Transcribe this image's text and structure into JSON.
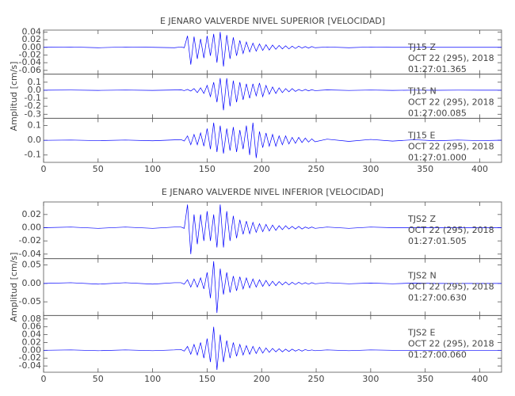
{
  "chart_data": [
    {
      "type": "line",
      "title": "E JENARO VALVERDE NIVEL SUPERIOR [VELOCIDAD]",
      "ylabel": "Amplitud [cm/s]",
      "xlim": [
        0,
        420
      ],
      "xticks": [
        0,
        50,
        100,
        150,
        200,
        250,
        300,
        350,
        400
      ],
      "x": [
        0,
        25,
        50,
        75,
        100,
        120,
        126,
        129,
        132,
        135,
        138,
        141,
        144,
        147,
        150,
        153,
        156,
        159,
        162,
        165,
        168,
        171,
        174,
        177,
        180,
        183,
        186,
        189,
        192,
        195,
        198,
        201,
        204,
        207,
        210,
        213,
        216,
        219,
        222,
        225,
        228,
        231,
        234,
        237,
        240,
        243,
        246,
        249,
        260,
        280,
        300,
        320,
        340,
        360,
        380,
        400,
        420
      ],
      "subplots": [
        {
          "label": "TJ15   Z",
          "date": "OCT 22 (295), 2018",
          "time": "01:27:01.365",
          "color": "#0000ff",
          "ylim": [
            -0.07,
            0.045
          ],
          "yticks": [
            0.04,
            0.02,
            {
              "value": 0,
              "label": "0.00"
            },
            -0.02,
            -0.04,
            -0.06
          ],
          "values": [
            0,
            0.001,
            -0.001,
            0.001,
            0,
            -0.001,
            0.001,
            -0.001,
            0.03,
            -0.045,
            0.028,
            -0.03,
            0.022,
            -0.028,
            0.03,
            -0.022,
            0.035,
            -0.04,
            0.04,
            -0.05,
            0.032,
            -0.03,
            0.026,
            -0.022,
            0.018,
            -0.016,
            0.014,
            -0.012,
            0.011,
            -0.01,
            0.009,
            -0.008,
            0.007,
            -0.007,
            0.006,
            -0.005,
            0.005,
            -0.004,
            0.004,
            -0.004,
            0.003,
            -0.003,
            0.003,
            -0.002,
            0.002,
            -0.002,
            0.002,
            -0.001,
            0.001,
            -0.001,
            0.001,
            0,
            0,
            0,
            0,
            0,
            0
          ]
        },
        {
          "label": "TJ15   N",
          "date": "OCT 22 (295), 2018",
          "time": "01:27:00.085",
          "color": "#0000ff",
          "ylim": [
            -0.35,
            0.2
          ],
          "yticks": [
            0.1,
            {
              "value": 0,
              "label": "0.0"
            },
            -0.1,
            -0.2,
            -0.3
          ],
          "values": [
            0,
            0.002,
            -0.002,
            0.002,
            -0.002,
            0.003,
            0.005,
            -0.005,
            0.01,
            -0.01,
            0.02,
            -0.03,
            0.03,
            -0.04,
            0.06,
            -0.08,
            0.1,
            -0.15,
            0.15,
            -0.25,
            0.15,
            -0.2,
            0.12,
            -0.15,
            0.1,
            -0.12,
            0.08,
            -0.1,
            0.08,
            -0.07,
            0.09,
            -0.08,
            0.06,
            -0.05,
            0.04,
            -0.04,
            0.03,
            -0.03,
            0.02,
            -0.02,
            0.02,
            -0.015,
            0.01,
            -0.01,
            0.01,
            -0.008,
            0.006,
            -0.005,
            0.004,
            -0.003,
            0.002,
            -0.002,
            0.001,
            -0.001,
            0.001,
            0,
            0
          ]
        },
        {
          "label": "TJ15   E",
          "date": "OCT 22 (295), 2018",
          "time": "01:27:01.000",
          "color": "#0000ff",
          "ylim": [
            -0.15,
            0.15
          ],
          "yticks": [
            0.1,
            {
              "value": 0,
              "label": "0.0"
            },
            -0.1
          ],
          "values": [
            0,
            0.002,
            -0.002,
            0.002,
            -0.003,
            0.003,
            0.005,
            -0.005,
            0.03,
            -0.03,
            0.04,
            -0.03,
            0.05,
            -0.04,
            0.08,
            -0.06,
            0.12,
            -0.08,
            0.1,
            -0.09,
            0.08,
            -0.07,
            0.09,
            -0.08,
            0.07,
            -0.06,
            0.1,
            -0.1,
            0.12,
            -0.12,
            0.06,
            -0.05,
            0.05,
            -0.04,
            0.04,
            -0.04,
            0.03,
            -0.03,
            0.03,
            -0.025,
            0.02,
            -0.02,
            0.02,
            -0.015,
            0.015,
            -0.012,
            0.01,
            -0.01,
            0.008,
            -0.007,
            0.006,
            -0.005,
            0.004,
            -0.003,
            0.002,
            -0.002,
            0.001
          ]
        }
      ]
    },
    {
      "type": "line",
      "title": "E JENARO VALVERDE NIVEL INFERIOR [VELOCIDAD]",
      "ylabel": "Amplitud [cm/s]",
      "xlim": [
        0,
        420
      ],
      "xticks": [
        0,
        50,
        100,
        150,
        200,
        250,
        300,
        350,
        400
      ],
      "x": [
        0,
        25,
        50,
        75,
        100,
        120,
        126,
        129,
        132,
        135,
        138,
        141,
        144,
        147,
        150,
        153,
        156,
        159,
        162,
        165,
        168,
        171,
        174,
        177,
        180,
        183,
        186,
        189,
        192,
        195,
        198,
        201,
        204,
        207,
        210,
        213,
        216,
        219,
        222,
        225,
        228,
        231,
        234,
        237,
        240,
        243,
        246,
        249,
        260,
        280,
        300,
        320,
        340,
        360,
        380,
        400,
        420
      ],
      "subplots": [
        {
          "label": "TJS2   Z",
          "date": "OCT 22 (295), 2018",
          "time": "01:27:01.505",
          "color": "#0000ff",
          "ylim": [
            -0.047,
            0.039
          ],
          "yticks": [
            0.02,
            {
              "value": 0,
              "label": "0.00"
            },
            -0.02,
            -0.04
          ],
          "values": [
            0,
            0.001,
            -0.001,
            0.001,
            -0.001,
            0.001,
            0.001,
            -0.001,
            0.035,
            -0.04,
            0.02,
            -0.025,
            0.02,
            -0.02,
            0.025,
            -0.02,
            0.02,
            -0.03,
            0.035,
            -0.03,
            0.025,
            -0.02,
            0.018,
            -0.016,
            0.012,
            -0.01,
            0.01,
            -0.009,
            0.008,
            -0.007,
            0.006,
            -0.006,
            0.005,
            -0.005,
            0.004,
            -0.004,
            0.003,
            -0.003,
            0.003,
            -0.002,
            0.002,
            -0.002,
            0.002,
            -0.002,
            0.001,
            -0.001,
            0.001,
            -0.001,
            0.001,
            -0.001,
            0.001,
            0,
            0,
            0,
            0,
            0,
            0
          ]
        },
        {
          "label": "TJS2   N",
          "date": "OCT 22 (295), 2018",
          "time": "01:27:00.630",
          "color": "#0000ff",
          "ylim": [
            -0.087,
            0.067
          ],
          "yticks": [
            0.05,
            {
              "value": 0,
              "label": "0.00"
            },
            -0.05
          ],
          "values": [
            0,
            0.002,
            -0.002,
            0.002,
            -0.002,
            0.002,
            0.002,
            -0.002,
            0.01,
            -0.01,
            0.012,
            -0.01,
            0.015,
            -0.015,
            0.03,
            -0.04,
            0.06,
            -0.08,
            0.04,
            -0.03,
            0.03,
            -0.025,
            0.02,
            -0.02,
            0.018,
            -0.015,
            0.015,
            -0.012,
            0.012,
            -0.01,
            0.01,
            -0.008,
            0.008,
            -0.007,
            0.006,
            -0.006,
            0.005,
            -0.004,
            0.004,
            -0.004,
            0.003,
            -0.003,
            0.003,
            -0.002,
            0.002,
            -0.002,
            0.002,
            -0.001,
            0.002,
            -0.001,
            0.001,
            -0.001,
            0.001,
            0,
            0,
            0,
            0
          ]
        },
        {
          "label": "TJS2   E",
          "date": "OCT 22 (295), 2018",
          "time": "01:27:00.060",
          "color": "#0000ff",
          "ylim": [
            -0.056,
            0.089
          ],
          "yticks": [
            0.08,
            0.06,
            0.04,
            0.02,
            {
              "value": 0,
              "label": "0.00"
            },
            -0.02,
            -0.04
          ],
          "values": [
            0,
            0.001,
            -0.001,
            0.001,
            -0.001,
            0.001,
            0.002,
            -0.002,
            0.01,
            -0.01,
            0.015,
            -0.012,
            0.02,
            -0.02,
            0.03,
            -0.03,
            0.06,
            -0.05,
            0.04,
            -0.03,
            0.025,
            -0.02,
            0.02,
            -0.015,
            0.015,
            -0.012,
            0.012,
            -0.01,
            0.01,
            -0.008,
            0.008,
            -0.007,
            0.006,
            -0.005,
            0.005,
            -0.004,
            0.004,
            -0.004,
            0.003,
            -0.003,
            0.003,
            -0.002,
            0.002,
            -0.002,
            0.002,
            -0.001,
            0.001,
            -0.001,
            0.001,
            -0.001,
            0.001,
            0,
            0,
            0,
            0,
            0,
            0
          ]
        }
      ]
    }
  ]
}
